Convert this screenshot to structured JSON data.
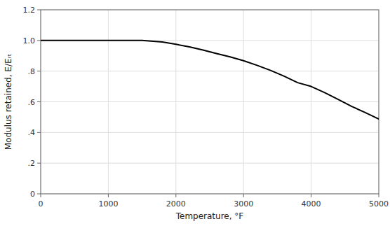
{
  "chart_data": {
    "type": "line",
    "xlabel": "Temperature, °F",
    "ylabel": "Modulus retained, E/Eᵣₜ",
    "x": [
      0,
      500,
      1000,
      1200,
      1400,
      1500,
      1600,
      1800,
      2000,
      2200,
      2400,
      2600,
      2800,
      3000,
      3200,
      3400,
      3600,
      3800,
      4000,
      4200,
      4400,
      4600,
      4800,
      5000
    ],
    "values": [
      1.0,
      1.0,
      1.0,
      1.0,
      1.0,
      1.0,
      0.997,
      0.99,
      0.975,
      0.958,
      0.938,
      0.915,
      0.893,
      0.868,
      0.838,
      0.805,
      0.767,
      0.725,
      0.7,
      0.66,
      0.615,
      0.57,
      0.53,
      0.488
    ],
    "color": "#000000",
    "xlim": [
      0,
      5000
    ],
    "ylim": [
      0,
      1.2
    ],
    "xticks": [
      0,
      1000,
      2000,
      3000,
      4000,
      5000
    ],
    "yticks": [
      0,
      {
        "value": 0.2,
        "label": ".2"
      },
      {
        "value": 0.4,
        "label": ".4"
      },
      {
        "value": 0.6,
        "label": ".6"
      },
      {
        "value": 0.8,
        "label": ".8"
      },
      {
        "value": 1.0,
        "label": "1.0"
      },
      1.2
    ],
    "grid": true
  }
}
